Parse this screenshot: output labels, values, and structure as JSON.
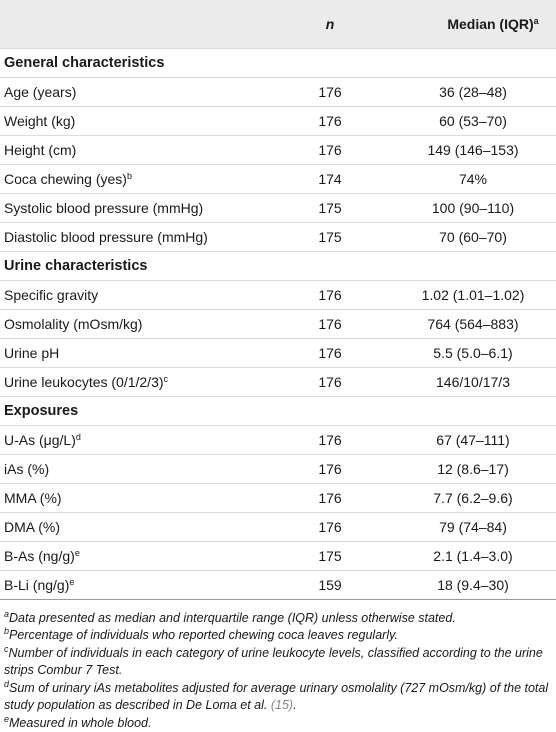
{
  "table": {
    "header": {
      "n": "n",
      "median": "Median (IQR)",
      "median_note": "a"
    },
    "sections": [
      {
        "title": "General characteristics",
        "rows": [
          {
            "label": "Age (years)",
            "n": 176,
            "median": "36 (28–48)"
          },
          {
            "label": "Weight (kg)",
            "n": 176,
            "median": "60 (53–70)"
          },
          {
            "label": "Height (cm)",
            "n": 176,
            "median": "149 (146–153)"
          },
          {
            "label": "Coca chewing (yes)",
            "note": "b",
            "n": 174,
            "median": "74%"
          },
          {
            "label": "Systolic blood pressure (mmHg)",
            "n": 175,
            "median": "100 (90–110)"
          },
          {
            "label": "Diastolic blood pressure (mmHg)",
            "n": 175,
            "median": "70 (60–70)"
          }
        ]
      },
      {
        "title": "Urine characteristics",
        "rows": [
          {
            "label": "Specific gravity",
            "n": 176,
            "median": "1.02 (1.01–1.02)"
          },
          {
            "label": "Osmolality (mOsm/kg)",
            "n": 176,
            "median": "764 (564–883)"
          },
          {
            "label": "Urine pH",
            "n": 176,
            "median": "5.5 (5.0–6.1)"
          },
          {
            "label": "Urine leukocytes (0/1/2/3)",
            "note": "c",
            "n": 176,
            "median": "146/10/17/3"
          }
        ]
      },
      {
        "title": "Exposures",
        "rows": [
          {
            "label": "U-As (μg/L)",
            "note": "d",
            "n": 176,
            "median": "67 (47–111)"
          },
          {
            "label": "iAs (%)",
            "n": 176,
            "median": "12 (8.6–17)"
          },
          {
            "label": "MMA (%)",
            "n": 176,
            "median": "7.7 (6.2–9.6)"
          },
          {
            "label": "DMA (%)",
            "n": 176,
            "median": "79 (74–84)"
          },
          {
            "label": "B-As (ng/g)",
            "note": "e",
            "n": 175,
            "median": "2.1 (1.4–3.0)"
          },
          {
            "label": "B-Li (ng/g)",
            "note": "e",
            "n": 159,
            "median": "18 (9.4–30)"
          }
        ]
      }
    ]
  },
  "footnotes": [
    {
      "marker": "a",
      "text": "Data presented as median and interquartile range (IQR) unless otherwise stated."
    },
    {
      "marker": "b",
      "text": "Percentage of individuals who reported chewing coca leaves regularly."
    },
    {
      "marker": "c",
      "text": "Number of individuals in each category of urine leukocyte levels, classified according to the urine strips Combur 7 Test."
    },
    {
      "marker": "d",
      "text": "Sum of urinary iAs metabolites adjusted for average urinary osmolality (727 mOsm/kg) of the total study population as described in De Loma et al. ",
      "ref": "(15)",
      "end": "."
    },
    {
      "marker": "e",
      "text": "Measured in whole blood."
    }
  ]
}
